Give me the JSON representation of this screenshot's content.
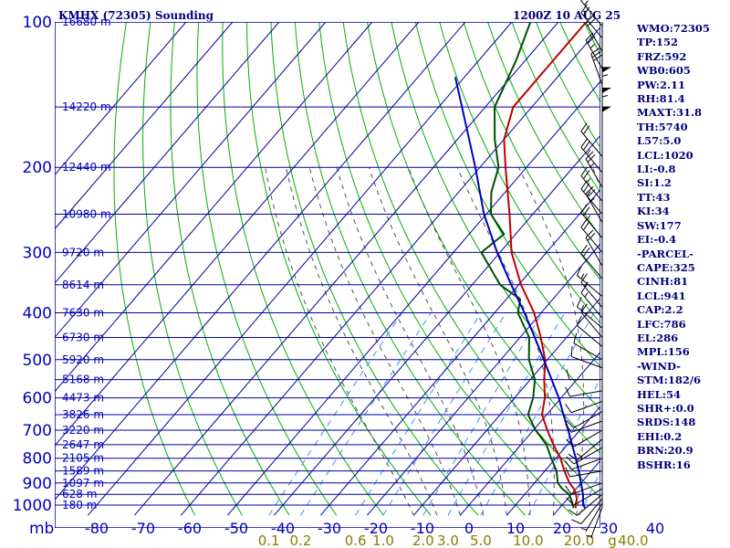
{
  "title_left": "KMHX (72305) Sounding",
  "title_right": "1200Z 10 AUG 25",
  "colors": {
    "background": "#ffffff",
    "grid": "#0000a0",
    "dry_adiabat": "#00b000",
    "moist_adiabat": "#505050",
    "mixing_ratio": "#4090ff",
    "temperature": "#c00000",
    "dewpoint": "#005000",
    "parcel": "#0000c0",
    "text": "#00007a"
  },
  "indices": [
    "WMO:72305",
    "TP:152",
    "FRZ:592",
    "WB0:605",
    "PW:2.11",
    "RH:81.4",
    "MAXT:31.8",
    "TH:5740",
    "L57:5.0",
    "LCL:1020",
    "LI:-0.8",
    "SI:1.2",
    "TT:43",
    "KI:34",
    "SW:177",
    "EI:-0.4",
    "-PARCEL-",
    "CAPE:325",
    "CINH:81",
    "LCL:941",
    "CAP:2.2",
    "LFC:786",
    "EL:286",
    "MPL:156",
    "-WIND-",
    "STM:182/6",
    "HEL:54",
    "SHR+:0.0",
    "SRDS:148",
    "EHI:0.2",
    "BRN:20.9",
    "BSHR:16"
  ],
  "chart_data": {
    "type": "skew-t",
    "title": "KMHX (72305) Sounding",
    "valid_time": "1200Z 10 AUG 25",
    "pressure_axis_label": "mb",
    "pressure_levels": [
      100,
      200,
      300,
      400,
      500,
      600,
      700,
      800,
      900,
      1000
    ],
    "pressure_tick_labels": [
      "100",
      "200",
      "300",
      "400",
      "500",
      "600",
      "700",
      "800",
      "900",
      "1000"
    ],
    "pressure_range": [
      100,
      1050
    ],
    "temperature_ticks": [
      -80,
      -70,
      -60,
      -50,
      -40,
      -30,
      -20,
      -10,
      0,
      10,
      20,
      30,
      40
    ],
    "temperature_tick_labels": [
      "-80",
      "-70",
      "-60",
      "-50",
      "-40",
      "-30",
      "-20",
      "-10",
      "0",
      "10",
      "20",
      "30",
      "40"
    ],
    "mixing_ratio_ticks": [
      0.1,
      0.2,
      0.6,
      1.0,
      2.0,
      3.0,
      5.0,
      10.0,
      20.0,
      40.0
    ],
    "mixing_ratio_labels": [
      "0.1",
      "0.2",
      "0.6",
      "1.0",
      "2.0",
      "3.0",
      "5.0",
      "10.0",
      "20.0",
      "40.0"
    ],
    "mixing_ratio_unit": "g",
    "height_labels": [
      {
        "p": 100,
        "label": "16680 m"
      },
      {
        "p": 150,
        "label": "14220 m"
      },
      {
        "p": 200,
        "label": "12440 m"
      },
      {
        "p": 250,
        "label": "10980 m"
      },
      {
        "p": 300,
        "label": "9720 m"
      },
      {
        "p": 350,
        "label": "8614 m"
      },
      {
        "p": 400,
        "label": "7630 m"
      },
      {
        "p": 450,
        "label": "6730 m"
      },
      {
        "p": 500,
        "label": "5920 m"
      },
      {
        "p": 550,
        "label": "5168 m"
      },
      {
        "p": 600,
        "label": "4473 m"
      },
      {
        "p": 650,
        "label": "3826 m"
      },
      {
        "p": 700,
        "label": "3220 m"
      },
      {
        "p": 750,
        "label": "2647 m"
      },
      {
        "p": 800,
        "label": "2105 m"
      },
      {
        "p": 850,
        "label": "1589 m"
      },
      {
        "p": 900,
        "label": "1097 m"
      },
      {
        "p": 950,
        "label": "628 m"
      },
      {
        "p": 1000,
        "label": "180 m"
      }
    ],
    "series": [
      {
        "name": "temperature",
        "points": [
          [
            1014,
            23.5
          ],
          [
            1000,
            22.8
          ],
          [
            975,
            22.2
          ],
          [
            950,
            21
          ],
          [
            925,
            19.5
          ],
          [
            900,
            17.5
          ],
          [
            850,
            14.2
          ],
          [
            800,
            11
          ],
          [
            750,
            7
          ],
          [
            700,
            3
          ],
          [
            650,
            -1
          ],
          [
            600,
            -3.5
          ],
          [
            550,
            -7
          ],
          [
            500,
            -10.5
          ],
          [
            450,
            -15.5
          ],
          [
            400,
            -21.5
          ],
          [
            350,
            -29.5
          ],
          [
            300,
            -37.5
          ],
          [
            250,
            -45
          ],
          [
            200,
            -54.5
          ],
          [
            175,
            -60
          ],
          [
            150,
            -64
          ],
          [
            120,
            -64
          ],
          [
            100,
            -64
          ]
        ]
      },
      {
        "name": "dewpoint",
        "points": [
          [
            1014,
            23
          ],
          [
            1000,
            22.3
          ],
          [
            975,
            21
          ],
          [
            950,
            19.5
          ],
          [
            925,
            17
          ],
          [
            900,
            15
          ],
          [
            850,
            12.5
          ],
          [
            800,
            9
          ],
          [
            750,
            5.5
          ],
          [
            700,
            0.5
          ],
          [
            650,
            -4
          ],
          [
            600,
            -6
          ],
          [
            550,
            -9
          ],
          [
            500,
            -14
          ],
          [
            450,
            -18
          ],
          [
            400,
            -25
          ],
          [
            375,
            -27
          ],
          [
            350,
            -34
          ],
          [
            300,
            -44
          ],
          [
            275,
            -42.5
          ],
          [
            250,
            -49
          ],
          [
            225,
            -53
          ],
          [
            200,
            -56
          ],
          [
            175,
            -62
          ],
          [
            150,
            -68
          ],
          [
            120,
            -72
          ],
          [
            100,
            -76
          ]
        ]
      },
      {
        "name": "parcel",
        "points": [
          [
            1014,
            25.5
          ],
          [
            1000,
            24.5
          ],
          [
            950,
            22.5
          ],
          [
            900,
            20
          ],
          [
            850,
            17.3
          ],
          [
            800,
            14.3
          ],
          [
            750,
            11
          ],
          [
            700,
            7.5
          ],
          [
            650,
            3.6
          ],
          [
            600,
            -0.5
          ],
          [
            550,
            -5.4
          ],
          [
            500,
            -10.8
          ],
          [
            450,
            -16.8
          ],
          [
            400,
            -23.6
          ],
          [
            350,
            -31.6
          ],
          [
            300,
            -40.6
          ],
          [
            250,
            -50.5
          ],
          [
            200,
            -61
          ],
          [
            150,
            -75
          ],
          [
            130,
            -82
          ]
        ]
      }
    ],
    "wind_barbs": [
      {
        "p": 1010,
        "dir": 200,
        "spd": 5
      },
      {
        "p": 990,
        "dir": 210,
        "spd": 5
      },
      {
        "p": 970,
        "dir": 220,
        "spd": 10
      },
      {
        "p": 950,
        "dir": 230,
        "spd": 10
      },
      {
        "p": 925,
        "dir": 240,
        "spd": 10
      },
      {
        "p": 900,
        "dir": 250,
        "spd": 10
      },
      {
        "p": 850,
        "dir": 260,
        "spd": 10
      },
      {
        "p": 800,
        "dir": 250,
        "spd": 10
      },
      {
        "p": 760,
        "dir": 240,
        "spd": 10
      },
      {
        "p": 730,
        "dir": 230,
        "spd": 15
      },
      {
        "p": 700,
        "dir": 240,
        "spd": 10
      },
      {
        "p": 670,
        "dir": 250,
        "spd": 10
      },
      {
        "p": 640,
        "dir": 240,
        "spd": 10
      },
      {
        "p": 610,
        "dir": 250,
        "spd": 10
      },
      {
        "p": 580,
        "dir": 260,
        "spd": 10
      },
      {
        "p": 550,
        "dir": 270,
        "spd": 10
      },
      {
        "p": 520,
        "dir": 290,
        "spd": 10
      },
      {
        "p": 500,
        "dir": 300,
        "spd": 10
      },
      {
        "p": 470,
        "dir": 310,
        "spd": 10
      },
      {
        "p": 450,
        "dir": 320,
        "spd": 15
      },
      {
        "p": 430,
        "dir": 310,
        "spd": 15
      },
      {
        "p": 410,
        "dir": 320,
        "spd": 15
      },
      {
        "p": 390,
        "dir": 320,
        "spd": 15
      },
      {
        "p": 370,
        "dir": 310,
        "spd": 15
      },
      {
        "p": 340,
        "dir": 320,
        "spd": 20
      },
      {
        "p": 320,
        "dir": 330,
        "spd": 20
      },
      {
        "p": 300,
        "dir": 320,
        "spd": 20
      },
      {
        "p": 280,
        "dir": 320,
        "spd": 25
      },
      {
        "p": 260,
        "dir": 330,
        "spd": 25
      },
      {
        "p": 250,
        "dir": 320,
        "spd": 25
      },
      {
        "p": 235,
        "dir": 320,
        "spd": 25
      },
      {
        "p": 220,
        "dir": 330,
        "spd": 25
      },
      {
        "p": 205,
        "dir": 320,
        "spd": 25
      },
      {
        "p": 190,
        "dir": 320,
        "spd": 20
      },
      {
        "p": 175,
        "dir": 0,
        "spd": 50
      },
      {
        "p": 160,
        "dir": 0,
        "spd": 55
      },
      {
        "p": 145,
        "dir": 0,
        "spd": 55
      },
      {
        "p": 135,
        "dir": 340,
        "spd": 30
      },
      {
        "p": 125,
        "dir": 330,
        "spd": 25
      },
      {
        "p": 115,
        "dir": 330,
        "spd": 20
      },
      {
        "p": 108,
        "dir": 320,
        "spd": 20
      },
      {
        "p": 102,
        "dir": 320,
        "spd": 15
      }
    ]
  }
}
